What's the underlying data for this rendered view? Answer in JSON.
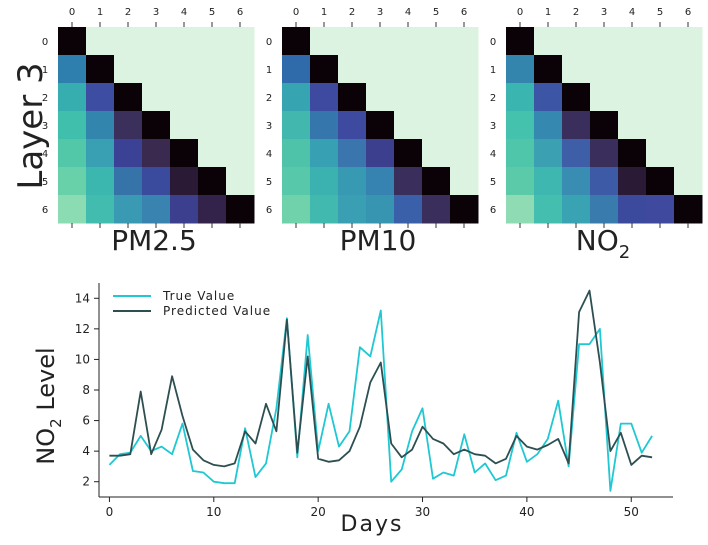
{
  "row_label": "Layer 3",
  "colors": {
    "masked": "#dcf3e2",
    "true_line": "#1fc8d2",
    "pred_line": "#2e4f52",
    "axis": "#222222"
  },
  "heatmap_ticks": [
    "0",
    "1",
    "2",
    "3",
    "4",
    "5",
    "6"
  ],
  "line_legend": {
    "true": "True Value",
    "pred": "Predicted Value"
  },
  "line_axes": {
    "xlabel": "Days",
    "ylabel_main": "NO",
    "ylabel_sub": "2",
    "ylabel_rest": " Level"
  },
  "chart_data": [
    {
      "type": "heatmap",
      "title_main": "PM2.5",
      "title_sub": "",
      "rows": [
        "0",
        "1",
        "2",
        "3",
        "4",
        "5",
        "6"
      ],
      "cols": [
        "0",
        "1",
        "2",
        "3",
        "4",
        "5",
        "6"
      ],
      "lower_triangle_colors": [
        [
          "#0b0208"
        ],
        [
          "#2f7fae",
          "#0b0208"
        ],
        [
          "#36aeb0",
          "#3d4ea2",
          "#0b0208"
        ],
        [
          "#41bfad",
          "#3285ac",
          "#3b2f5c",
          "#0b0208"
        ],
        [
          "#52c8a8",
          "#38a0b2",
          "#3b4195",
          "#3a2a4f",
          "#0b0208"
        ],
        [
          "#68d1aa",
          "#3cb7b0",
          "#3573a8",
          "#3a4a9d",
          "#2a1a35",
          "#0b0208"
        ],
        [
          "#8bdcb3",
          "#42bcae",
          "#3a9ab3",
          "#3883b0",
          "#3b3f8d",
          "#33224a",
          "#0b0208"
        ]
      ]
    },
    {
      "type": "heatmap",
      "title_main": "PM10",
      "title_sub": "",
      "rows": [
        "0",
        "1",
        "2",
        "3",
        "4",
        "5",
        "6"
      ],
      "cols": [
        "0",
        "1",
        "2",
        "3",
        "4",
        "5",
        "6"
      ],
      "lower_triangle_colors": [
        [
          "#0b0208"
        ],
        [
          "#2f6aaa",
          "#0b0208"
        ],
        [
          "#36a5b1",
          "#3e4a9f",
          "#0b0208"
        ],
        [
          "#41b7ae",
          "#3576ad",
          "#3e4a9f",
          "#0b0208"
        ],
        [
          "#4ec3aa",
          "#37a0b2",
          "#3a76ad",
          "#3b3f8d",
          "#0b0208"
        ],
        [
          "#58c8aa",
          "#3cb2b0",
          "#3899b3",
          "#3682b0",
          "#3a2f5c",
          "#0b0208"
        ],
        [
          "#6fd2ab",
          "#42b9ae",
          "#3a9fb2",
          "#3895b2",
          "#3960a8",
          "#3a2f5c",
          "#0b0208"
        ]
      ]
    },
    {
      "type": "heatmap",
      "title_main": "NO",
      "title_sub": "2",
      "rows": [
        "0",
        "1",
        "2",
        "3",
        "4",
        "5",
        "6"
      ],
      "cols": [
        "0",
        "1",
        "2",
        "3",
        "4",
        "5",
        "6"
      ],
      "lower_triangle_colors": [
        [
          "#0b0208"
        ],
        [
          "#3385ae",
          "#0b0208"
        ],
        [
          "#3bb5b0",
          "#3c55a4",
          "#0b0208"
        ],
        [
          "#44c2ad",
          "#3588b0",
          "#3a2f5c",
          "#0b0208"
        ],
        [
          "#4fc6aa",
          "#3aa0b2",
          "#3e5ea8",
          "#3a2f5c",
          "#0b0208"
        ],
        [
          "#5acaa9",
          "#3db7b0",
          "#3a8db2",
          "#3c5aa5",
          "#2a1a35",
          "#0b0208"
        ],
        [
          "#8fdbb3",
          "#44beae",
          "#3aa3b3",
          "#3a7bae",
          "#3b4a9c",
          "#3f4a9e",
          "#0b0208"
        ]
      ]
    },
    {
      "type": "line",
      "x": [
        0,
        1,
        2,
        3,
        4,
        5,
        6,
        7,
        8,
        9,
        10,
        11,
        12,
        13,
        14,
        15,
        16,
        17,
        18,
        19,
        20,
        21,
        22,
        23,
        24,
        25,
        26,
        27,
        28,
        29,
        30,
        31,
        32,
        33,
        34,
        35,
        36,
        37,
        38,
        39,
        40,
        41,
        42,
        43,
        44,
        45,
        46,
        47,
        48,
        49,
        50,
        51,
        52,
        53
      ],
      "xlim": [
        -1,
        54
      ],
      "ylim": [
        1,
        15
      ],
      "xticks": [
        0,
        10,
        20,
        30,
        40,
        50
      ],
      "yticks": [
        2,
        4,
        6,
        8,
        10,
        12,
        14
      ],
      "series": [
        {
          "name": "True Value",
          "values": [
            3.1,
            3.8,
            3.9,
            5.0,
            4.0,
            4.3,
            3.8,
            5.8,
            2.7,
            2.6,
            2.0,
            1.9,
            1.9,
            5.5,
            2.3,
            3.2,
            6.8,
            12.7,
            3.6,
            11.6,
            4.0,
            7.1,
            4.3,
            5.3,
            10.8,
            10.2,
            13.2,
            2.0,
            2.8,
            5.3,
            6.8,
            2.2,
            2.6,
            2.4,
            5.1,
            2.6,
            3.2,
            2.1,
            2.4,
            5.2,
            3.3,
            3.8,
            4.8,
            7.3,
            3.0,
            11.0,
            11.0,
            12.0,
            1.4,
            5.8,
            5.8,
            3.9,
            5.0,
            null
          ]
        },
        {
          "name": "Predicted Value",
          "values": [
            3.7,
            3.7,
            3.8,
            7.9,
            3.8,
            5.4,
            8.9,
            6.3,
            4.1,
            3.4,
            3.1,
            3.0,
            3.2,
            5.3,
            4.5,
            7.1,
            5.3,
            12.6,
            3.9,
            10.2,
            3.5,
            3.3,
            3.4,
            4.0,
            5.6,
            8.5,
            9.8,
            4.5,
            3.6,
            4.1,
            5.6,
            4.8,
            4.5,
            3.8,
            4.1,
            3.8,
            3.7,
            3.2,
            3.5,
            5.0,
            4.3,
            4.1,
            4.4,
            4.8,
            3.2,
            13.1,
            14.5,
            9.8,
            4.0,
            5.2,
            3.1,
            3.7,
            3.6,
            null
          ]
        }
      ]
    }
  ]
}
